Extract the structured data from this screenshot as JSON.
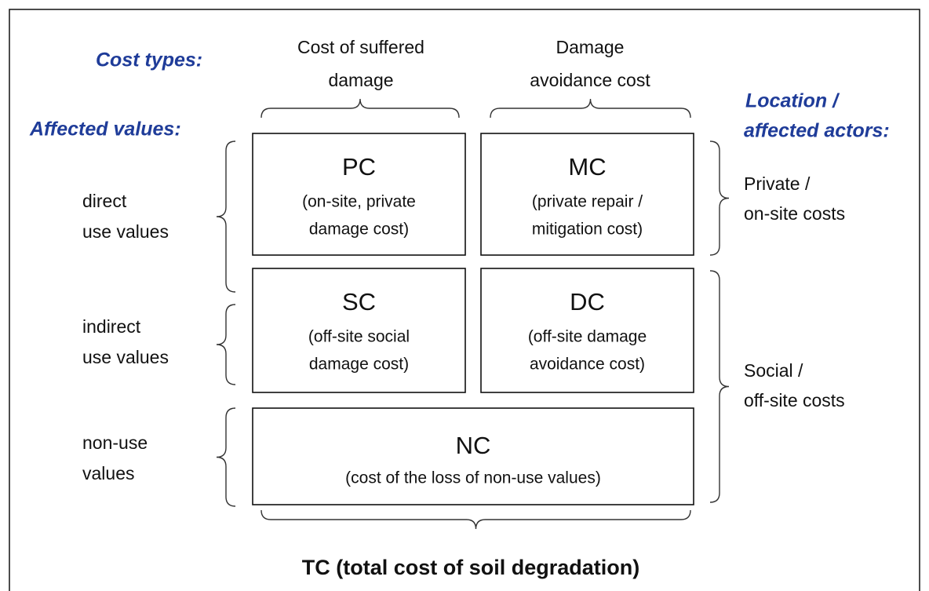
{
  "cost_types_label": "Cost types:",
  "affected_values_label": "Affected values:",
  "location_label": [
    "Location /",
    "affected actors:"
  ],
  "columns": [
    {
      "lines": [
        "Cost of suffered",
        "damage"
      ]
    },
    {
      "lines": [
        "Damage",
        "avoidance cost"
      ]
    }
  ],
  "rows": [
    {
      "lines": [
        "direct",
        "use values"
      ]
    },
    {
      "lines": [
        "indirect",
        "use values"
      ]
    },
    {
      "lines": [
        "non-use",
        "values"
      ]
    }
  ],
  "actors": [
    {
      "lines": [
        "Private /",
        "on-site costs"
      ]
    },
    {
      "lines": [
        "Social /",
        "off-site costs"
      ]
    }
  ],
  "boxes": [
    {
      "code": "PC",
      "lines": [
        "(on-site, private",
        "damage cost)"
      ]
    },
    {
      "code": "MC",
      "lines": [
        "(private repair /",
        "mitigation cost)"
      ]
    },
    {
      "code": "SC",
      "lines": [
        "(off-site social",
        "damage cost)"
      ]
    },
    {
      "code": "DC",
      "lines": [
        "(off-site damage",
        "avoidance cost)"
      ]
    },
    {
      "code": "NC",
      "lines": [
        "(cost of the loss of non-use values)"
      ]
    }
  ],
  "total": "TC (total cost of soil degradation)"
}
